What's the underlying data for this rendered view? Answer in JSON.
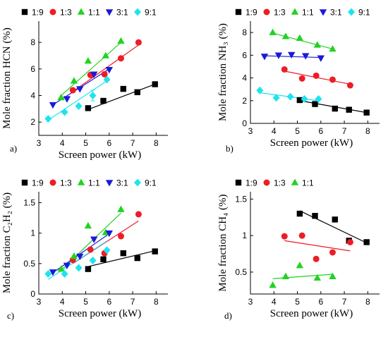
{
  "x_axis_label": "Screen power (kW)",
  "chart_data": [
    {
      "panel": "a)",
      "type": "scatter",
      "ylabel": "Mole fraction HCN (%)",
      "xlabel": "Screen power (kW)",
      "xlim": [
        3,
        8.5
      ],
      "ylim": [
        1,
        9.6
      ],
      "xticks": [
        3,
        4,
        5,
        6,
        7,
        8
      ],
      "yticks": [
        2,
        4,
        6,
        8
      ],
      "legend": "top",
      "series": [
        {
          "name": "1:9",
          "color": "#000000",
          "marker": "square",
          "points": [
            [
              5.1,
              3.05
            ],
            [
              5.75,
              3.6
            ],
            [
              6.6,
              4.5
            ],
            [
              7.2,
              4.25
            ],
            [
              7.95,
              4.85
            ]
          ],
          "fit": [
            [
              5.1,
              2.95
            ],
            [
              7.95,
              4.85
            ]
          ]
        },
        {
          "name": "1:3",
          "color": "#ee1c25",
          "marker": "circle",
          "points": [
            [
              4.45,
              4.4
            ],
            [
              5.2,
              5.55
            ],
            [
              5.8,
              5.6
            ],
            [
              6.5,
              6.8
            ],
            [
              7.25,
              8.0
            ]
          ],
          "fit": [
            [
              4.45,
              4.3
            ],
            [
              7.25,
              7.8
            ]
          ]
        },
        {
          "name": "1:1",
          "color": "#21d321",
          "marker": "triangle-up",
          "points": [
            [
              3.95,
              3.85
            ],
            [
              4.5,
              5.1
            ],
            [
              5.1,
              6.6
            ],
            [
              5.85,
              7.0
            ],
            [
              6.5,
              8.1
            ]
          ],
          "fit": [
            [
              3.95,
              4.0
            ],
            [
              6.5,
              8.0
            ]
          ]
        },
        {
          "name": "3:1",
          "color": "#1a1ad8",
          "marker": "triangle-down",
          "points": [
            [
              3.6,
              3.3
            ],
            [
              4.2,
              3.75
            ],
            [
              4.75,
              4.5
            ],
            [
              5.35,
              5.6
            ],
            [
              6.0,
              5.95
            ]
          ],
          "fit": [
            [
              3.6,
              3.3
            ],
            [
              6.0,
              6.0
            ]
          ]
        },
        {
          "name": "9:1",
          "color": "#1fe3ee",
          "marker": "diamond",
          "points": [
            [
              3.4,
              2.25
            ],
            [
              4.1,
              2.75
            ],
            [
              4.7,
              3.2
            ],
            [
              5.3,
              4.0
            ],
            [
              5.9,
              5.2
            ]
          ],
          "fit": [
            [
              3.4,
              2.15
            ],
            [
              5.9,
              5.1
            ]
          ]
        }
      ],
      "annotations": [
        {
          "type": "errorbar",
          "series": "9:1",
          "x": 5.3,
          "y": 4.0,
          "err": 0.4
        }
      ]
    },
    {
      "panel": "b)",
      "type": "scatter",
      "ylabel": "Mole fraction NH₃ (%)",
      "xlabel": "Screen power (kW)",
      "xlim": [
        3,
        8.5
      ],
      "ylim": [
        0,
        9.0
      ],
      "xticks": [
        3,
        4,
        5,
        6,
        7,
        8
      ],
      "yticks": [
        0,
        2,
        4,
        6,
        8
      ],
      "legend": "top",
      "series": [
        {
          "name": "1:9",
          "color": "#000000",
          "marker": "square",
          "points": [
            [
              5.1,
              2.05
            ],
            [
              5.75,
              1.7
            ],
            [
              6.6,
              1.3
            ],
            [
              7.2,
              1.2
            ],
            [
              7.95,
              0.95
            ]
          ],
          "fit": [
            [
              5.1,
              2.0
            ],
            [
              7.95,
              0.95
            ]
          ]
        },
        {
          "name": "1:3",
          "color": "#ee1c25",
          "marker": "circle",
          "points": [
            [
              4.45,
              4.75
            ],
            [
              5.2,
              3.95
            ],
            [
              5.8,
              4.2
            ],
            [
              6.5,
              3.85
            ],
            [
              7.25,
              3.35
            ]
          ],
          "fit": [
            [
              4.45,
              4.6
            ],
            [
              7.25,
              3.45
            ]
          ]
        },
        {
          "name": "1:1",
          "color": "#21d321",
          "marker": "triangle-up",
          "points": [
            [
              3.95,
              8.0
            ],
            [
              4.5,
              7.65
            ],
            [
              5.1,
              7.5
            ],
            [
              5.85,
              6.9
            ],
            [
              6.5,
              6.55
            ]
          ],
          "fit": [
            [
              3.95,
              7.95
            ],
            [
              6.5,
              6.55
            ]
          ]
        },
        {
          "name": "3:1",
          "color": "#1a1ad8",
          "marker": "triangle-down",
          "points": [
            [
              3.6,
              5.9
            ],
            [
              4.2,
              6.0
            ],
            [
              4.75,
              6.05
            ],
            [
              5.35,
              5.95
            ],
            [
              6.0,
              5.75
            ]
          ],
          "fit": [
            [
              3.6,
              5.95
            ],
            [
              6.0,
              5.8
            ]
          ]
        },
        {
          "name": "9:1",
          "color": "#1fe3ee",
          "marker": "diamond",
          "points": [
            [
              3.4,
              2.9
            ],
            [
              4.1,
              2.25
            ],
            [
              4.7,
              2.35
            ],
            [
              5.3,
              2.15
            ],
            [
              5.9,
              2.15
            ]
          ],
          "fit": [
            [
              3.4,
              2.7
            ],
            [
              5.9,
              2.0
            ]
          ]
        }
      ]
    },
    {
      "panel": "c)",
      "type": "scatter",
      "ylabel": "Mole fraction C₂H₂ (%)",
      "xlabel": "Screen power (kW)",
      "xlim": [
        3,
        8.5
      ],
      "ylim": [
        0,
        1.68
      ],
      "xticks": [
        3,
        4,
        5,
        6,
        7,
        8
      ],
      "yticks": [
        0,
        0.5,
        1,
        1.5
      ],
      "legend": "top",
      "series": [
        {
          "name": "1:9",
          "color": "#000000",
          "marker": "square",
          "points": [
            [
              5.1,
              0.41
            ],
            [
              5.75,
              0.57
            ],
            [
              6.6,
              0.67
            ],
            [
              7.2,
              0.59
            ],
            [
              7.95,
              0.7
            ]
          ],
          "fit": [
            [
              5.1,
              0.45
            ],
            [
              7.95,
              0.71
            ]
          ]
        },
        {
          "name": "1:3",
          "color": "#ee1c25",
          "marker": "circle",
          "points": [
            [
              4.45,
              0.56
            ],
            [
              5.2,
              0.73
            ],
            [
              5.8,
              0.67
            ],
            [
              6.5,
              0.95
            ],
            [
              7.25,
              1.31
            ]
          ],
          "fit": [
            [
              4.45,
              0.5
            ],
            [
              7.25,
              1.2
            ]
          ]
        },
        {
          "name": "1:1",
          "color": "#21d321",
          "marker": "triangle-up",
          "points": [
            [
              3.95,
              0.41
            ],
            [
              4.5,
              0.62
            ],
            [
              5.1,
              1.12
            ],
            [
              5.85,
              1.01
            ],
            [
              6.5,
              1.39
            ]
          ],
          "fit": [
            [
              3.95,
              0.39
            ],
            [
              6.5,
              1.33
            ]
          ]
        },
        {
          "name": "3:1",
          "color": "#1a1ad8",
          "marker": "triangle-down",
          "points": [
            [
              3.6,
              0.36
            ],
            [
              4.2,
              0.47
            ],
            [
              4.75,
              0.62
            ],
            [
              5.35,
              0.9
            ],
            [
              6.0,
              1.0
            ]
          ],
          "fit": [
            [
              3.6,
              0.35
            ],
            [
              6.0,
              0.99
            ]
          ]
        },
        {
          "name": "9:1",
          "color": "#1fe3ee",
          "marker": "diamond",
          "points": [
            [
              3.4,
              0.33
            ],
            [
              4.1,
              0.33
            ],
            [
              4.7,
              0.43
            ],
            [
              5.3,
              0.55
            ],
            [
              5.9,
              0.72
            ]
          ],
          "fit": [
            [
              3.4,
              0.24
            ],
            [
              5.9,
              0.87
            ]
          ]
        }
      ]
    },
    {
      "panel": "d)",
      "type": "scatter",
      "ylabel": "Mole fraction CH₄ (%)",
      "xlabel": "Screen power (kW)",
      "xlim": [
        3,
        8.5
      ],
      "ylim": [
        0.2,
        1.6
      ],
      "xticks": [
        3,
        4,
        5,
        6,
        7,
        8
      ],
      "yticks": [
        0.5,
        1,
        1.5
      ],
      "legend": "top",
      "series": [
        {
          "name": "1:9",
          "color": "#000000",
          "marker": "square",
          "points": [
            [
              5.1,
              1.3
            ],
            [
              5.75,
              1.27
            ],
            [
              6.6,
              1.22
            ],
            [
              7.2,
              0.93
            ],
            [
              7.95,
              0.91
            ]
          ],
          "fit": [
            [
              5.1,
              1.34
            ],
            [
              7.95,
              0.9
            ]
          ]
        },
        {
          "name": "1:3",
          "color": "#ee1c25",
          "marker": "circle",
          "points": [
            [
              4.45,
              0.99
            ],
            [
              5.2,
              1.0
            ],
            [
              5.8,
              0.68
            ],
            [
              6.5,
              0.77
            ],
            [
              7.25,
              0.91
            ]
          ],
          "fit": [
            [
              4.45,
              0.93
            ],
            [
              7.25,
              0.79
            ]
          ]
        },
        {
          "name": "1:1",
          "color": "#21d321",
          "marker": "triangle-up",
          "points": [
            [
              3.95,
              0.32
            ],
            [
              4.5,
              0.44
            ],
            [
              5.1,
              0.59
            ],
            [
              5.85,
              0.42
            ],
            [
              6.5,
              0.44
            ]
          ],
          "fit": [
            [
              3.95,
              0.41
            ],
            [
              6.5,
              0.47
            ]
          ]
        }
      ]
    }
  ]
}
